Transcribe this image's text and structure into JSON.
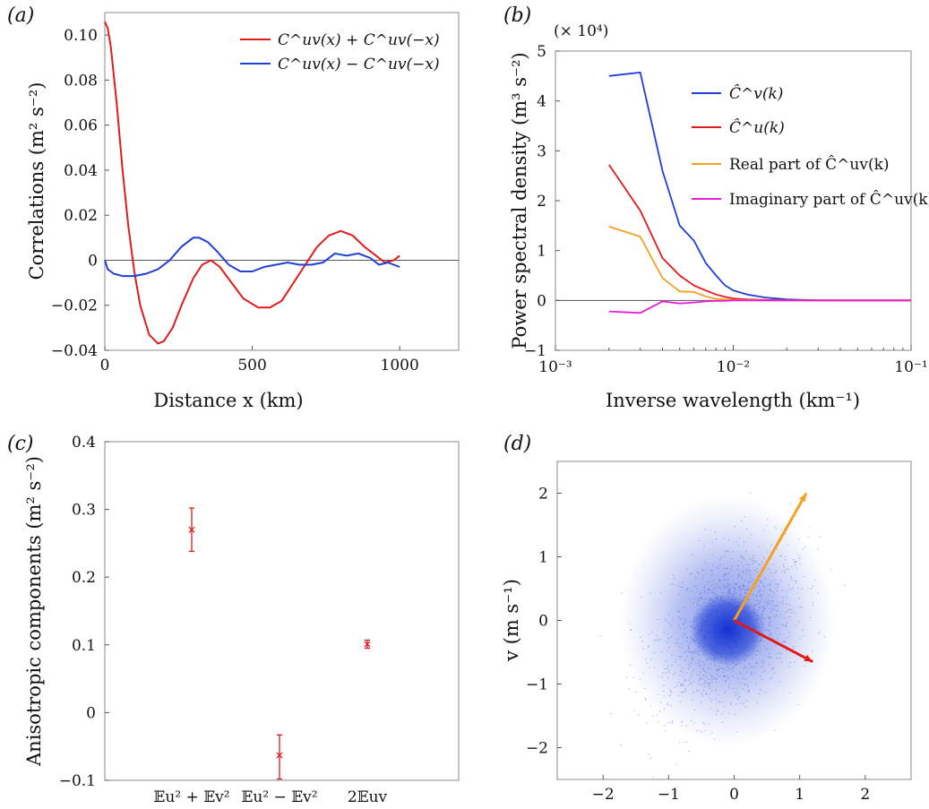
{
  "chart_data": [
    {
      "panel_label": "(a)",
      "type": "line",
      "xlabel": "Distance x (km)",
      "ylabel": "Correlations (m² s⁻²)",
      "xlim": [
        0,
        1200
      ],
      "ylim": [
        -0.04,
        0.11
      ],
      "xticks": [
        0,
        500,
        1000
      ],
      "xtick_labels": [
        "0",
        "500",
        "1000"
      ],
      "yticks": [
        -0.04,
        -0.02,
        0,
        0.02,
        0.04,
        0.06,
        0.08,
        0.1
      ],
      "ytick_labels": [
        "−0.04",
        "−0.02",
        "0",
        "0.02",
        "0.04",
        "0.06",
        "0.08",
        "0.10"
      ],
      "zero_line": true,
      "legend_position": "top-right",
      "series": [
        {
          "name": "C^uv(x) + C^uv(−x)",
          "color": "#e31a1c",
          "x": [
            0,
            10,
            20,
            40,
            60,
            80,
            100,
            120,
            150,
            180,
            200,
            230,
            260,
            300,
            330,
            360,
            390,
            430,
            470,
            520,
            560,
            600,
            640,
            680,
            720,
            760,
            800,
            840,
            880,
            920,
            950,
            980,
            1000
          ],
          "y": [
            0.106,
            0.103,
            0.095,
            0.07,
            0.04,
            0.015,
            -0.005,
            -0.02,
            -0.033,
            -0.037,
            -0.036,
            -0.03,
            -0.02,
            -0.008,
            -0.002,
            0.0,
            -0.003,
            -0.01,
            -0.017,
            -0.021,
            -0.021,
            -0.018,
            -0.01,
            -0.002,
            0.006,
            0.011,
            0.013,
            0.011,
            0.006,
            0.002,
            -0.001,
            0.0,
            0.002
          ]
        },
        {
          "name": "C^uv(x) − C^uv(−x)",
          "color": "#1f3fd6",
          "x": [
            0,
            10,
            30,
            60,
            100,
            140,
            180,
            220,
            260,
            300,
            320,
            350,
            380,
            420,
            460,
            500,
            540,
            580,
            620,
            660,
            700,
            740,
            780,
            820,
            860,
            900,
            930,
            960,
            1000
          ],
          "y": [
            0.0,
            -0.004,
            -0.006,
            -0.007,
            -0.007,
            -0.006,
            -0.004,
            0.0,
            0.006,
            0.01,
            0.01,
            0.008,
            0.004,
            -0.002,
            -0.005,
            -0.005,
            -0.003,
            -0.002,
            -0.001,
            -0.002,
            -0.002,
            -0.001,
            0.003,
            0.002,
            0.003,
            0.001,
            -0.002,
            -0.001,
            -0.003
          ]
        }
      ]
    },
    {
      "panel_label": "(b)",
      "type": "line",
      "xlabel": "Inverse wavelength (km⁻¹)",
      "ylabel": "Power spectral density (m³ s⁻²)",
      "y_multiplier_label": "(× 10⁴)",
      "xscale": "log",
      "xlim": [
        0.001,
        0.1
      ],
      "ylim": [
        -1,
        5
      ],
      "xticks": [
        0.001,
        0.01,
        0.1
      ],
      "xtick_labels": [
        "10⁻³",
        "10⁻²",
        "10⁻¹"
      ],
      "yticks": [
        -1,
        0,
        1,
        2,
        3,
        4,
        5
      ],
      "ytick_labels": [
        "−1",
        "0",
        "1",
        "2",
        "3",
        "4",
        "5"
      ],
      "zero_line": true,
      "legend_position": "top-right",
      "x": [
        0.002,
        0.003,
        0.004,
        0.005,
        0.006,
        0.007,
        0.008,
        0.009,
        0.01,
        0.012,
        0.015,
        0.02,
        0.03,
        0.05,
        0.1
      ],
      "series": [
        {
          "name": "Ĉ^v(k)",
          "color": "#1f3fd6",
          "values": [
            4.5,
            4.57,
            2.6,
            1.5,
            1.2,
            0.75,
            0.5,
            0.3,
            0.2,
            0.12,
            0.06,
            0.02,
            0.005,
            0.0,
            0.0
          ]
        },
        {
          "name": "Ĉ^u(k)",
          "color": "#e31a1c",
          "values": [
            2.72,
            1.8,
            0.85,
            0.5,
            0.3,
            0.2,
            0.12,
            0.07,
            0.04,
            0.02,
            0.01,
            0.005,
            0.0,
            0.0,
            0.0
          ]
        },
        {
          "name": "Real part of Ĉ^uv(k)",
          "color": "#f5a020",
          "values": [
            1.48,
            1.28,
            0.45,
            0.18,
            0.17,
            0.08,
            0.03,
            0.02,
            0.01,
            0.01,
            0.0,
            0.0,
            0.0,
            0.0,
            0.0
          ]
        },
        {
          "name": "Imaginary part of Ĉ^uv(k)",
          "color": "#e61ed6",
          "values": [
            -0.22,
            -0.25,
            -0.02,
            -0.06,
            -0.04,
            -0.02,
            -0.01,
            -0.01,
            0.0,
            0.0,
            0.0,
            0.0,
            0.0,
            0.0,
            0.0
          ]
        }
      ]
    },
    {
      "panel_label": "(c)",
      "type": "scatter",
      "ylabel": "Anisotropic components (m² s⁻²)",
      "ylim": [
        -0.1,
        0.4
      ],
      "yticks": [
        -0.1,
        0,
        0.1,
        0.2,
        0.3,
        0.4
      ],
      "ytick_labels": [
        "−0.1",
        "0",
        "0.1",
        "0.2",
        "0.3",
        "0.4"
      ],
      "categories": [
        "𝔼u² + 𝔼v²",
        "𝔼u² − 𝔼v²",
        "2𝔼uv"
      ],
      "color": "#e31a1c",
      "values": [
        0.27,
        -0.063,
        0.101
      ],
      "error_low": [
        0.238,
        -0.098,
        0.095
      ],
      "error_high": [
        0.302,
        -0.033,
        0.107
      ]
    },
    {
      "panel_label": "(d)",
      "type": "scatter",
      "ylabel": "v (m s⁻¹)",
      "xlim": [
        -2.7,
        2.7
      ],
      "ylim": [
        -2.5,
        2.5
      ],
      "xticks": [
        -2,
        -1,
        0,
        1,
        2
      ],
      "xtick_labels": [
        "−2",
        "−1",
        "0",
        "1",
        "2"
      ],
      "yticks": [
        -2,
        -1,
        0,
        1,
        2
      ],
      "ytick_labels": [
        "−2",
        "−1",
        "0",
        "1",
        "2"
      ],
      "point_color": "#1f3fd6",
      "cloud_center": [
        -0.1,
        -0.15
      ],
      "core_color": "#f5a020",
      "arrows": [
        {
          "color": "#f5a020",
          "from": [
            0,
            0
          ],
          "to": [
            1.1,
            2.0
          ]
        },
        {
          "color": "#e31a1c",
          "from": [
            0,
            0
          ],
          "to": [
            1.2,
            -0.65
          ]
        }
      ]
    }
  ]
}
